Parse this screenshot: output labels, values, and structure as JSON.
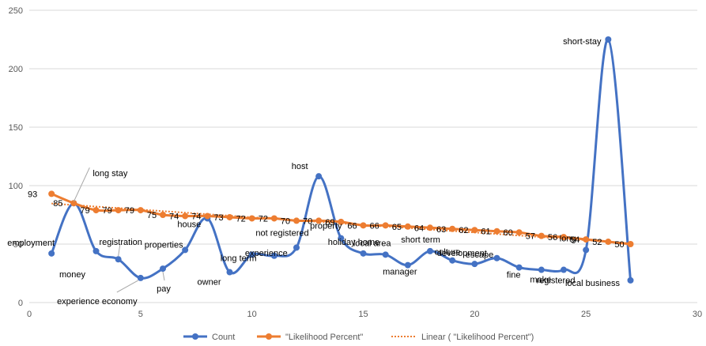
{
  "chart_data": {
    "type": "line",
    "xlim": [
      0,
      30
    ],
    "ylim": [
      0,
      250
    ],
    "x_ticks": [
      "0",
      "5",
      "10",
      "15",
      "20",
      "25",
      "30"
    ],
    "y_ticks": [
      "0",
      "50",
      "100",
      "150",
      "200",
      "250"
    ],
    "grid": "horizontal",
    "legend_position": "bottom",
    "colors": {
      "count": "#4472C4",
      "likelihood": "#ED7D31",
      "axis": "#D9D9D9",
      "leader": "#A6A6A6"
    },
    "series": [
      {
        "name": "Count",
        "x": [
          1,
          2,
          3,
          4,
          5,
          6,
          7,
          8,
          9,
          10,
          11,
          12,
          13,
          14,
          15,
          16,
          17,
          18,
          19,
          20,
          21,
          22,
          23,
          24,
          25,
          26,
          27
        ],
        "y": [
          42,
          85,
          44,
          37,
          21,
          29,
          45,
          72,
          26,
          41,
          40,
          47,
          108,
          55,
          42,
          41,
          32,
          44,
          36,
          33,
          38,
          30,
          28,
          28,
          45,
          225,
          19
        ],
        "point_labels": [
          "employment",
          "long stay",
          "money",
          "registration",
          "experience economy",
          "pay",
          "properties",
          "house",
          "owner",
          "long term",
          "experience",
          "not registered",
          "host",
          "property",
          "holiday home",
          "local area",
          "manager",
          "short term",
          "culture",
          "development",
          "escape",
          "fine",
          "make",
          "registered",
          "long",
          "short-stay",
          "local business"
        ]
      },
      {
        "name": "\"Likelihood Percent\"",
        "x": [
          1,
          2,
          3,
          4,
          5,
          6,
          7,
          8,
          9,
          10,
          11,
          12,
          13,
          14,
          15,
          16,
          17,
          18,
          19,
          20,
          21,
          22,
          23,
          24,
          25,
          26,
          27
        ],
        "y": [
          93,
          85,
          79,
          79,
          79,
          75,
          74,
          74,
          73,
          72,
          72,
          70,
          70,
          69,
          66,
          66,
          65,
          64,
          63,
          62,
          61,
          60,
          57,
          56,
          54,
          52,
          50
        ],
        "value_labels": [
          "93",
          "85",
          "79",
          "79",
          "79",
          "75",
          "74",
          "74",
          "73",
          "72",
          "72",
          "70",
          "70",
          "69",
          "66",
          "66",
          "65",
          "64",
          "63",
          "62",
          "61",
          "60",
          "57",
          "56",
          "54",
          "52",
          "50"
        ]
      }
    ],
    "trendline": {
      "name": "Linear ( \"Likelihood Percent\")",
      "x": [
        1,
        27
      ],
      "y": [
        84.7,
        50.8
      ]
    }
  }
}
